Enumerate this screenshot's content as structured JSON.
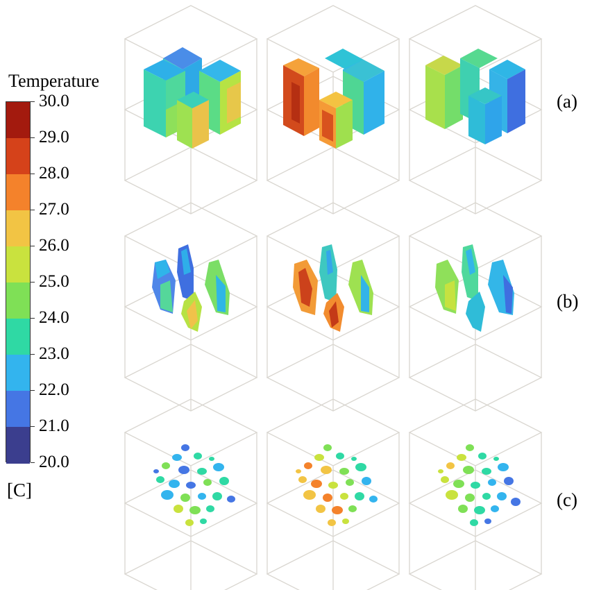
{
  "legend": {
    "title": "Temperature",
    "unit": "[C]",
    "ticks": [
      "30.0",
      "29.0",
      "28.0",
      "27.0",
      "26.0",
      "25.0",
      "24.0",
      "23.0",
      "22.0",
      "21.0",
      "20.0"
    ],
    "colors": [
      "#a31a0e",
      "#d5421a",
      "#f4822b",
      "#f2c444",
      "#c9e23e",
      "#7fe056",
      "#2fd9a4",
      "#33b4ee",
      "#4576e4",
      "#3b3e8e"
    ]
  },
  "rows": [
    {
      "label": "(a)"
    },
    {
      "label": "(b)"
    },
    {
      "label": "(c)"
    }
  ]
}
